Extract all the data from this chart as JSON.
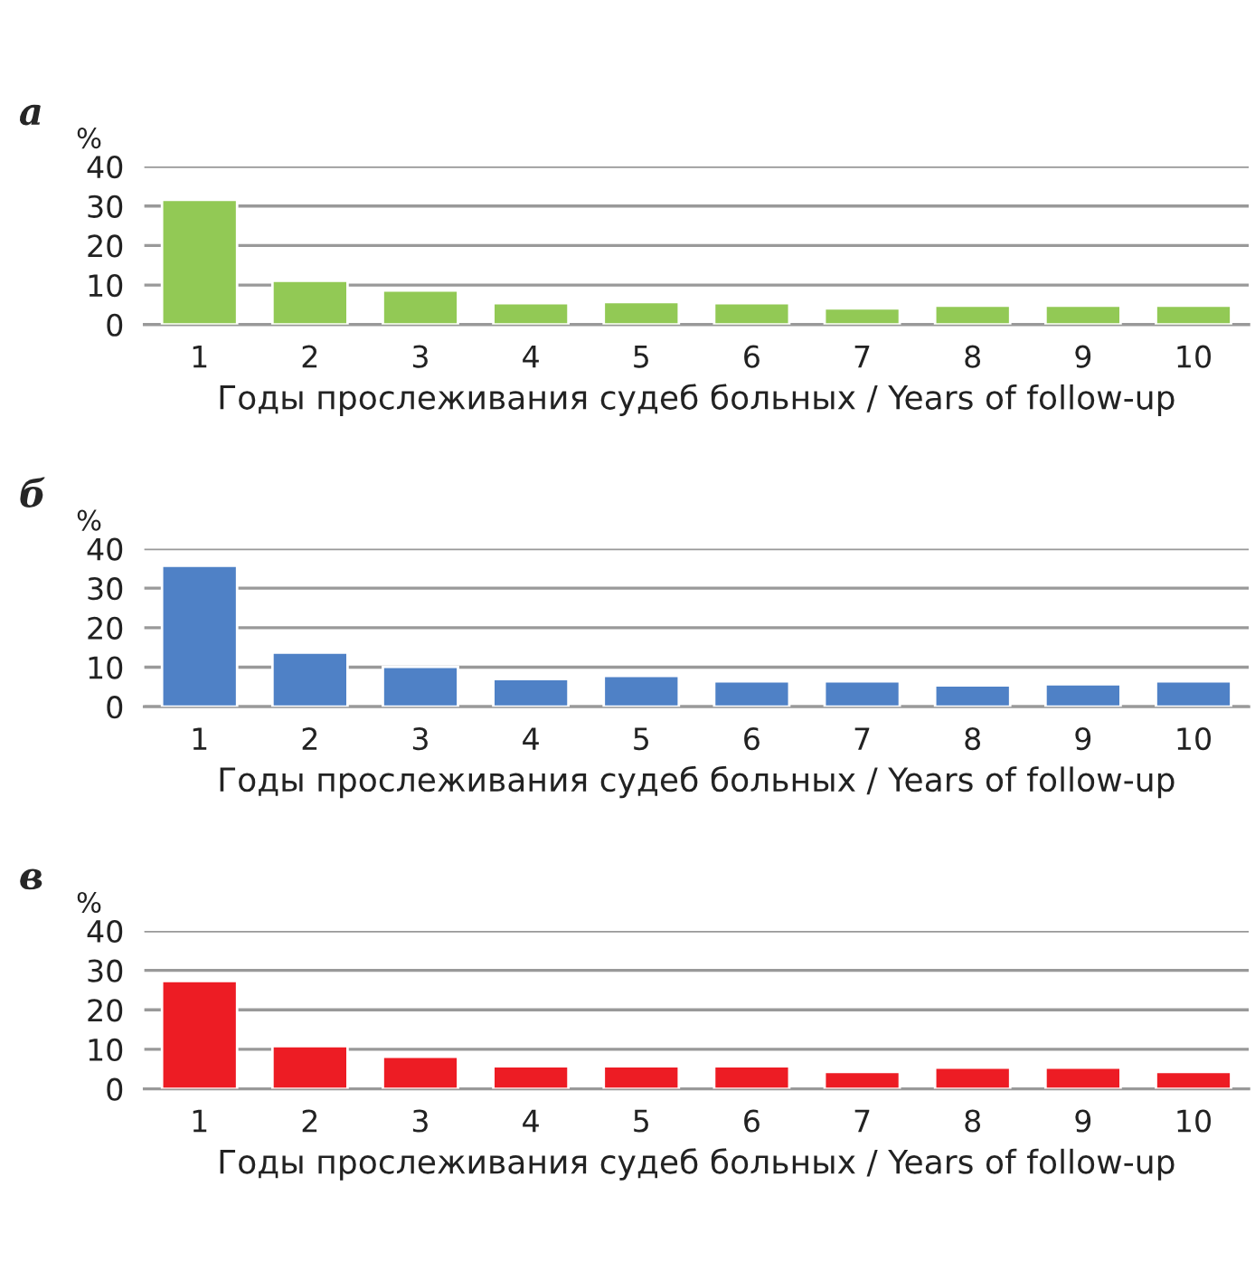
{
  "chart_data": [
    {
      "type": "bar",
      "title": "а",
      "ylabel": "%",
      "xlabel": "Годы прослеживания судеб больных / Years of follow-up",
      "categories": [
        "1",
        "2",
        "3",
        "4",
        "5",
        "6",
        "7",
        "8",
        "9",
        "10"
      ],
      "values": [
        31.6,
        11.1,
        8.6,
        5.4,
        5.7,
        5.4,
        4.1,
        4.8,
        4.8,
        4.8
      ],
      "color": "#92c955",
      "ylim": [
        0,
        40
      ],
      "yticks": [
        0,
        10,
        20,
        30,
        40
      ],
      "grid": "y"
    },
    {
      "type": "bar",
      "title": "б",
      "ylabel": "%",
      "xlabel": "Годы прослеживания судеб больных / Years of follow-up",
      "categories": [
        "1",
        "2",
        "3",
        "4",
        "5",
        "6",
        "7",
        "8",
        "9",
        "10"
      ],
      "values": [
        35.7,
        13.7,
        10.1,
        7.0,
        7.8,
        6.4,
        6.4,
        5.4,
        5.7,
        6.4
      ],
      "color": "#4f81c6",
      "ylim": [
        0,
        40
      ],
      "yticks": [
        0,
        10,
        20,
        30,
        40
      ],
      "grid": "y"
    },
    {
      "type": "bar",
      "title": "в",
      "ylabel": "%",
      "xlabel": "Годы прослеживания судеб больных / Years of follow-up",
      "categories": [
        "1",
        "2",
        "3",
        "4",
        "5",
        "6",
        "7",
        "8",
        "9",
        "10"
      ],
      "values": [
        27.3,
        10.8,
        8.1,
        5.7,
        5.7,
        5.7,
        4.3,
        5.4,
        5.4,
        4.3
      ],
      "color": "#ed1c24",
      "ylim": [
        0,
        40
      ],
      "yticks": [
        0,
        10,
        20,
        30,
        40
      ],
      "grid": "y"
    }
  ]
}
